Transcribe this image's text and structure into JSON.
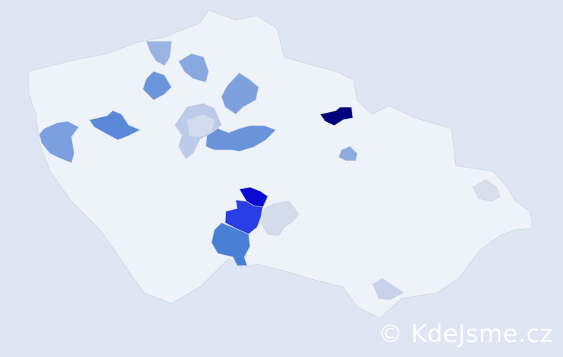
{
  "map": {
    "colors": {
      "background": "#dde6f2",
      "base_region": "#eef2f9",
      "border": "#c9d4e8"
    },
    "highlighted_regions": [
      {
        "id": "r1",
        "color": "#00007a"
      },
      {
        "id": "r2",
        "color": "#0a0ad0"
      },
      {
        "id": "r3",
        "color": "#2a3ee6"
      },
      {
        "id": "r4",
        "color": "#4a7fd6"
      },
      {
        "id": "r5",
        "color": "#5a88d8"
      },
      {
        "id": "r6",
        "color": "#7c9fdf"
      },
      {
        "id": "r7",
        "color": "#6a93da"
      },
      {
        "id": "r8",
        "color": "#7ea1de"
      },
      {
        "id": "r9",
        "color": "#8aa8e0"
      },
      {
        "id": "r10",
        "color": "#9ab4e2"
      },
      {
        "id": "r11",
        "color": "#6b95da"
      },
      {
        "id": "r12",
        "color": "#bccbe9"
      },
      {
        "id": "r13",
        "color": "#d2dcee"
      },
      {
        "id": "r14",
        "color": "#d4dcec"
      },
      {
        "id": "r15",
        "color": "#8eabe0"
      },
      {
        "id": "r16",
        "color": "#d8dfec"
      },
      {
        "id": "r17",
        "color": "#c8d3ea"
      }
    ]
  },
  "watermark": "© KdeJsme.cz"
}
